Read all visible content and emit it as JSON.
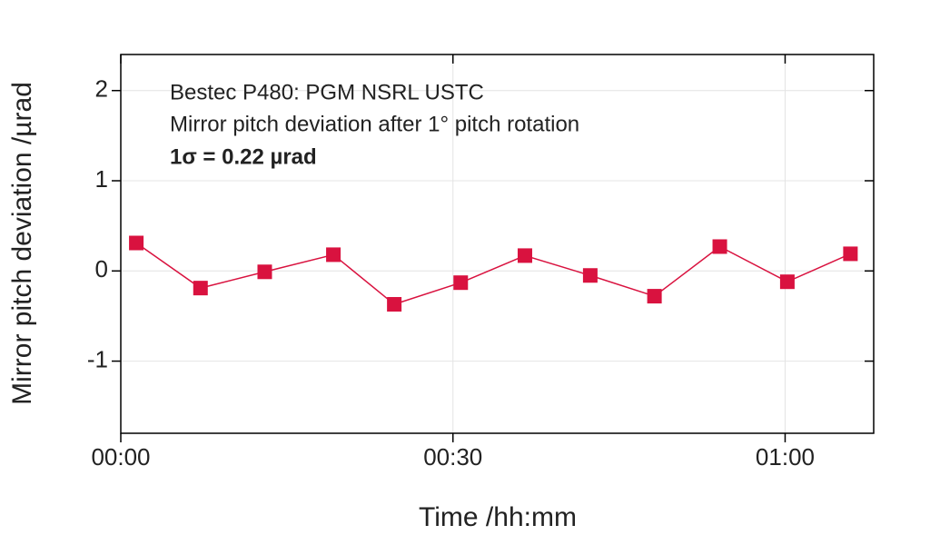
{
  "chart_data": {
    "type": "line",
    "x_label": "Time /hh:mm",
    "y_label": "Mirror pitch deviation /µrad",
    "annotations": [
      "Bestec P480: PGM NSRL USTC",
      "Mirror pitch deviation after 1° pitch rotation",
      "1σ = 0.22 µrad"
    ],
    "x": [
      1.4,
      7.2,
      13,
      19.2,
      24.7,
      30.7,
      36.5,
      42.4,
      48.2,
      54.1,
      60.2,
      65.9
    ],
    "series": [
      {
        "color": "#d9123f",
        "values": [
          0.31,
          -0.19,
          -0.01,
          0.18,
          -0.37,
          -0.13,
          0.17,
          -0.05,
          -0.28,
          0.27,
          -0.12,
          0.19
        ]
      }
    ],
    "xlim": [
      0,
      68
    ],
    "xticks": [
      {
        "value": 0,
        "label": "00:00"
      },
      {
        "value": 30,
        "label": "00:30"
      },
      {
        "value": 60,
        "label": "01:00"
      }
    ],
    "ylim": [
      -1.8,
      2.4
    ],
    "yticks": [
      -1,
      0,
      1,
      2
    ],
    "grid": true
  }
}
